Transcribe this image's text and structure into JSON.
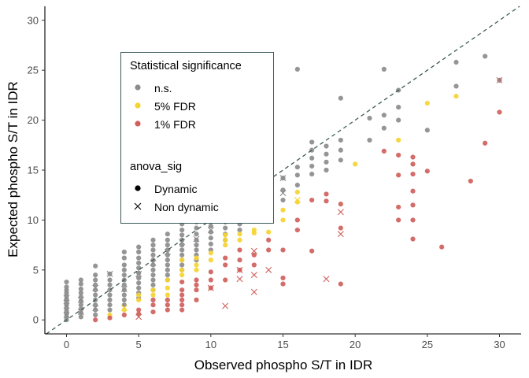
{
  "chart_data": {
    "type": "scatter",
    "xlabel": "Observed phospho S/T in IDR",
    "ylabel": "Expected phospho S/T in IDR",
    "xlim": [
      -1.5,
      31.5
    ],
    "ylim": [
      -1.4,
      31.4
    ],
    "x_ticks": [
      "0",
      "5",
      "10",
      "15",
      "20",
      "25",
      "30"
    ],
    "y_ticks": [
      "0",
      "5",
      "10",
      "15",
      "20",
      "25",
      "30"
    ],
    "grid": false,
    "legend_placement": "top-left",
    "reference_line": {
      "type": "identity",
      "slope": 1,
      "intercept": 0,
      "style": "dashed",
      "color": "#3d5a58"
    },
    "legend": {
      "color_title": "Statistical significance",
      "color_entries": [
        {
          "label": "n.s.",
          "color": "#8c8c8c"
        },
        {
          "label": "5% FDR",
          "color": "#f5d431"
        },
        {
          "label": "1% FDR",
          "color": "#d0605c"
        }
      ],
      "shape_title": "anova_sig",
      "shape_entries": [
        {
          "label": "Dynamic",
          "shape": "circle"
        },
        {
          "label": "Non dynamic",
          "shape": "x"
        }
      ]
    },
    "series": [
      {
        "name": "n.s.",
        "color": "#8c8c8c",
        "points": [
          [
            0,
            0
          ],
          [
            0,
            0.3
          ],
          [
            0,
            0.6
          ],
          [
            0,
            0.9
          ],
          [
            0,
            1.2
          ],
          [
            0,
            1.5
          ],
          [
            0,
            1.8
          ],
          [
            0,
            2.1
          ],
          [
            0,
            2.4
          ],
          [
            0,
            2.7
          ],
          [
            0,
            3.0
          ],
          [
            0,
            3.3
          ],
          [
            0,
            3.8
          ],
          [
            1,
            0.3
          ],
          [
            1,
            0.7
          ],
          [
            1,
            1.1
          ],
          [
            1,
            1.5
          ],
          [
            1,
            1.9
          ],
          [
            1,
            2.3
          ],
          [
            1,
            2.7
          ],
          [
            1,
            3.1
          ],
          [
            1,
            3.6
          ],
          [
            1,
            4.0
          ],
          [
            2,
            0.5
          ],
          [
            2,
            1.0
          ],
          [
            2,
            1.5
          ],
          [
            2,
            2.0
          ],
          [
            2,
            2.5
          ],
          [
            2,
            3.0
          ],
          [
            2,
            3.5
          ],
          [
            2,
            4.0
          ],
          [
            2,
            4.5
          ],
          [
            2,
            5.4
          ],
          [
            3,
            1.0
          ],
          [
            3,
            1.5
          ],
          [
            3,
            2.0
          ],
          [
            3,
            2.5
          ],
          [
            3,
            3.0
          ],
          [
            3,
            3.5
          ],
          [
            3,
            4.0
          ],
          [
            3,
            4.6
          ],
          [
            4,
            1.5
          ],
          [
            4,
            2.0
          ],
          [
            4,
            2.5
          ],
          [
            4,
            3.0
          ],
          [
            4,
            3.5
          ],
          [
            4,
            4.0
          ],
          [
            4,
            4.5
          ],
          [
            4,
            5.0
          ],
          [
            4,
            5.5
          ],
          [
            4,
            6.2
          ],
          [
            4,
            6.8
          ],
          [
            5,
            2.2
          ],
          [
            5,
            2.7
          ],
          [
            5,
            3.2
          ],
          [
            5,
            3.7
          ],
          [
            5,
            4.2
          ],
          [
            5,
            4.7
          ],
          [
            5,
            5.2
          ],
          [
            5,
            5.7
          ],
          [
            5,
            6.2
          ],
          [
            5,
            6.8
          ],
          [
            5,
            7.3
          ],
          [
            6,
            3.0
          ],
          [
            6,
            3.5
          ],
          [
            6,
            4.0
          ],
          [
            6,
            4.5
          ],
          [
            6,
            5.0
          ],
          [
            6,
            5.5
          ],
          [
            6,
            6.0
          ],
          [
            6,
            6.5
          ],
          [
            6,
            7.0
          ],
          [
            6,
            7.5
          ],
          [
            6,
            8.0
          ],
          [
            7,
            4.0
          ],
          [
            7,
            4.5
          ],
          [
            7,
            5.0
          ],
          [
            7,
            5.5
          ],
          [
            7,
            6.0
          ],
          [
            7,
            6.5
          ],
          [
            7,
            7.0
          ],
          [
            7,
            7.5
          ],
          [
            7,
            8.0
          ],
          [
            7,
            8.6
          ],
          [
            8,
            5.0
          ],
          [
            8,
            5.5
          ],
          [
            8,
            6.0
          ],
          [
            8,
            6.5
          ],
          [
            8,
            7.0
          ],
          [
            8,
            7.5
          ],
          [
            8,
            8.0
          ],
          [
            8,
            8.5
          ],
          [
            8,
            9.0
          ],
          [
            8,
            9.6
          ],
          [
            9,
            6.0
          ],
          [
            9,
            6.5
          ],
          [
            9,
            7.0
          ],
          [
            9,
            7.5
          ],
          [
            9,
            8.0
          ],
          [
            9,
            8.6
          ],
          [
            9,
            9.2
          ],
          [
            9,
            9.8
          ],
          [
            10,
            7.0
          ],
          [
            10,
            7.6
          ],
          [
            10,
            8.2
          ],
          [
            10,
            8.8
          ],
          [
            10,
            9.4
          ],
          [
            10,
            10.0
          ],
          [
            11,
            8.0
          ],
          [
            11,
            8.6
          ],
          [
            11,
            9.2
          ],
          [
            11,
            9.8
          ],
          [
            11,
            10.4
          ],
          [
            11,
            11.0
          ],
          [
            12,
            9.0
          ],
          [
            12,
            9.6
          ],
          [
            12,
            10.2
          ],
          [
            12,
            10.8
          ],
          [
            12,
            11.5
          ],
          [
            13,
            10.0
          ],
          [
            13,
            10.6
          ],
          [
            13,
            11.2
          ],
          [
            13,
            11.9
          ],
          [
            14,
            11.0
          ],
          [
            14,
            11.6
          ],
          [
            14,
            12.2
          ],
          [
            14,
            12.8
          ],
          [
            15,
            12.0
          ],
          [
            15,
            13.0
          ],
          [
            15,
            14.2
          ],
          [
            16,
            13.5
          ],
          [
            16,
            14.5
          ],
          [
            16,
            15.3
          ],
          [
            16,
            25.1
          ],
          [
            17,
            14.6
          ],
          [
            17,
            15.4
          ],
          [
            17,
            16.2
          ],
          [
            17,
            17.0
          ],
          [
            17,
            17.8
          ],
          [
            18,
            15.0
          ],
          [
            18,
            15.8
          ],
          [
            18,
            16.6
          ],
          [
            18,
            17.4
          ],
          [
            19,
            16.0
          ],
          [
            19,
            17.0
          ],
          [
            19,
            18.0
          ],
          [
            19,
            22.2
          ],
          [
            21,
            18.0
          ],
          [
            21,
            20.2
          ],
          [
            22,
            19.2
          ],
          [
            22,
            20.5
          ],
          [
            22,
            25.1
          ],
          [
            23,
            20.0
          ],
          [
            23,
            21.3
          ],
          [
            23,
            23.0
          ],
          [
            25,
            19.0
          ],
          [
            27,
            23.4
          ],
          [
            27,
            25.8
          ],
          [
            29,
            26.4
          ]
        ]
      },
      {
        "name": "5% FDR",
        "color": "#f5d431",
        "points": [
          [
            3,
            0.5
          ],
          [
            4,
            1.0
          ],
          [
            5,
            2.0
          ],
          [
            5,
            2.5
          ],
          [
            6,
            2.5
          ],
          [
            6,
            3.0
          ],
          [
            7,
            2.5
          ],
          [
            7,
            3.2
          ],
          [
            7,
            4.0
          ],
          [
            8,
            4.5
          ],
          [
            8,
            5.0
          ],
          [
            8,
            6.0
          ],
          [
            9,
            5.0
          ],
          [
            9,
            5.5
          ],
          [
            9,
            6.2
          ],
          [
            10,
            6.0
          ],
          [
            10,
            6.7
          ],
          [
            11,
            7.5
          ],
          [
            11,
            8.0
          ],
          [
            11,
            8.5
          ],
          [
            12,
            8.0
          ],
          [
            12,
            8.6
          ],
          [
            13,
            9.0
          ],
          [
            13,
            8.7
          ],
          [
            14,
            8.8
          ],
          [
            15,
            10.0
          ],
          [
            15,
            11.0
          ],
          [
            16,
            12.8
          ],
          [
            16,
            11.8
          ],
          [
            20,
            15.6
          ],
          [
            23,
            18.0
          ],
          [
            25,
            21.7
          ],
          [
            27,
            22.4
          ]
        ]
      },
      {
        "name": "1% FDR",
        "color": "#d0605c",
        "points": [
          [
            2,
            0
          ],
          [
            3,
            0.2
          ],
          [
            4,
            0.5
          ],
          [
            5,
            0.6
          ],
          [
            5,
            1.0
          ],
          [
            6,
            0.8
          ],
          [
            6,
            1.5
          ],
          [
            6,
            2.0
          ],
          [
            7,
            1.0
          ],
          [
            7,
            1.5
          ],
          [
            7,
            2.0
          ],
          [
            8,
            1.0
          ],
          [
            8,
            1.5
          ],
          [
            8,
            2.0
          ],
          [
            8,
            2.5
          ],
          [
            8,
            3.0
          ],
          [
            8,
            3.8
          ],
          [
            9,
            2.0
          ],
          [
            9,
            3.0
          ],
          [
            9,
            3.5
          ],
          [
            9,
            4.0
          ],
          [
            10,
            3.2
          ],
          [
            10,
            4.0
          ],
          [
            10,
            4.8
          ],
          [
            11,
            4.0
          ],
          [
            11,
            5.5
          ],
          [
            11,
            6.2
          ],
          [
            12,
            5.0
          ],
          [
            12,
            6.0
          ],
          [
            12,
            7.0
          ],
          [
            13,
            5.5
          ],
          [
            13,
            6.5
          ],
          [
            14,
            7.0
          ],
          [
            14,
            8.0
          ],
          [
            15,
            3.6
          ],
          [
            15,
            4.2
          ],
          [
            15,
            7.0
          ],
          [
            16,
            9.0
          ],
          [
            16,
            10.0
          ],
          [
            17,
            6.9
          ],
          [
            17,
            12.0
          ],
          [
            18,
            11.9
          ],
          [
            18,
            12.6
          ],
          [
            19,
            3.6
          ],
          [
            19,
            9.2
          ],
          [
            19,
            11.6
          ],
          [
            22,
            16.9
          ],
          [
            23,
            10.0
          ],
          [
            23,
            11.3
          ],
          [
            23,
            14.5
          ],
          [
            23,
            16.5
          ],
          [
            24,
            8.1
          ],
          [
            24,
            10.0
          ],
          [
            24,
            11.5
          ],
          [
            24,
            12.9
          ],
          [
            24,
            14.6
          ],
          [
            24,
            15.6
          ],
          [
            24,
            16.3
          ],
          [
            25,
            14.9
          ],
          [
            26,
            7.3
          ],
          [
            28,
            13.9
          ],
          [
            29,
            17.7
          ],
          [
            30,
            20.8
          ],
          [
            30,
            24.0
          ]
        ]
      }
    ],
    "non_dynamic": [
      {
        "x": 0,
        "y": 0.5,
        "sig": "n.s."
      },
      {
        "x": 0,
        "y": 1.4,
        "sig": "n.s."
      },
      {
        "x": 0,
        "y": 2.2,
        "sig": "n.s."
      },
      {
        "x": 1,
        "y": 0.8,
        "sig": "n.s."
      },
      {
        "x": 1,
        "y": 2.0,
        "sig": "n.s."
      },
      {
        "x": 2,
        "y": 1.2,
        "sig": "n.s."
      },
      {
        "x": 2,
        "y": 3.2,
        "sig": "n.s."
      },
      {
        "x": 3,
        "y": 4.6,
        "sig": "n.s."
      },
      {
        "x": 4,
        "y": 3.1,
        "sig": "n.s."
      },
      {
        "x": 5,
        "y": 4.6,
        "sig": "n.s."
      },
      {
        "x": 6,
        "y": 5.7,
        "sig": "n.s."
      },
      {
        "x": 7,
        "y": 6.8,
        "sig": "n.s."
      },
      {
        "x": 8,
        "y": 7.8,
        "sig": "n.s."
      },
      {
        "x": 9,
        "y": 8.1,
        "sig": "n.s."
      },
      {
        "x": 10,
        "y": 9.0,
        "sig": "n.s."
      },
      {
        "x": 15,
        "y": 12.7,
        "sig": "n.s."
      },
      {
        "x": 15,
        "y": 14.2,
        "sig": "n.s."
      },
      {
        "x": 30,
        "y": 24.0,
        "sig": "n.s."
      },
      {
        "x": 4,
        "y": 1.2,
        "sig": "5% FDR"
      },
      {
        "x": 16,
        "y": 12.0,
        "sig": "5% FDR"
      },
      {
        "x": 5,
        "y": 0.3,
        "sig": "1% FDR"
      },
      {
        "x": 10,
        "y": 3.2,
        "sig": "1% FDR"
      },
      {
        "x": 11,
        "y": 1.4,
        "sig": "1% FDR"
      },
      {
        "x": 12,
        "y": 4.1,
        "sig": "1% FDR"
      },
      {
        "x": 12,
        "y": 5.0,
        "sig": "1% FDR"
      },
      {
        "x": 13,
        "y": 2.8,
        "sig": "1% FDR"
      },
      {
        "x": 13,
        "y": 4.5,
        "sig": "1% FDR"
      },
      {
        "x": 13,
        "y": 6.9,
        "sig": "1% FDR"
      },
      {
        "x": 14,
        "y": 5.0,
        "sig": "1% FDR"
      },
      {
        "x": 18,
        "y": 4.1,
        "sig": "1% FDR"
      },
      {
        "x": 19,
        "y": 8.6,
        "sig": "1% FDR"
      },
      {
        "x": 19,
        "y": 10.8,
        "sig": "1% FDR"
      }
    ]
  }
}
